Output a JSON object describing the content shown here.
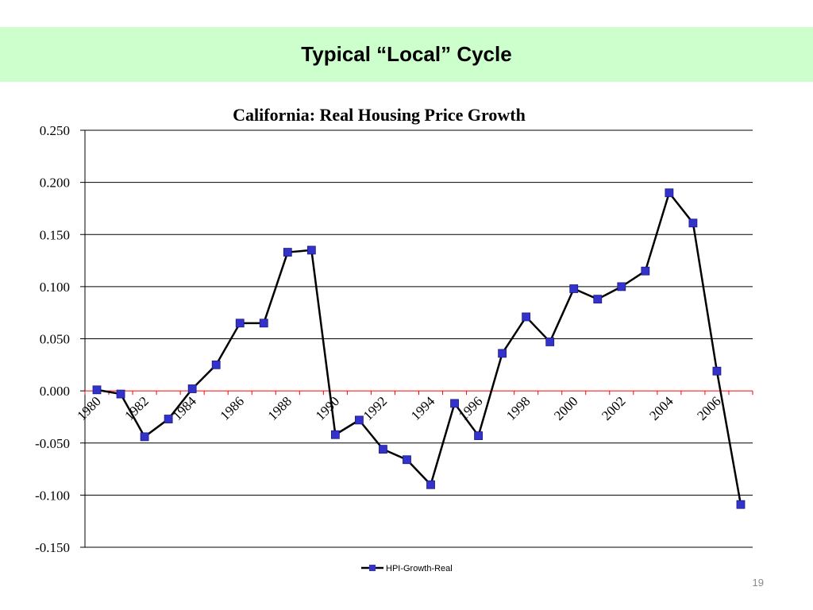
{
  "slide": {
    "title": "Typical “Local” Cycle",
    "page_number": "19",
    "title_band_color": "#ccffcc"
  },
  "chart_data": {
    "type": "line",
    "title": "California:   Real Housing Price Growth",
    "xlabel": "",
    "ylabel": "",
    "ylim": [
      -0.15,
      0.25
    ],
    "y_ticks": [
      "0.250",
      "0.200",
      "0.150",
      "0.100",
      "0.050",
      "0.000",
      "-0.050",
      "-0.100",
      "-0.150"
    ],
    "y_tick_values": [
      0.25,
      0.2,
      0.15,
      0.1,
      0.05,
      0.0,
      -0.05,
      -0.1,
      -0.15
    ],
    "x": [
      1980,
      1981,
      1982,
      1983,
      1984,
      1985,
      1986,
      1987,
      1988,
      1989,
      1990,
      1991,
      1992,
      1993,
      1994,
      1995,
      1996,
      1997,
      1998,
      1999,
      2000,
      2001,
      2002,
      2003,
      2004,
      2005,
      2006,
      2007
    ],
    "x_tick_labels": [
      "1980",
      "1982",
      "1984",
      "1986",
      "1988",
      "1990",
      "1992",
      "1994",
      "1996",
      "1998",
      "2000",
      "2002",
      "2004",
      "2006"
    ],
    "series": [
      {
        "name": "HPI-Growth-Real",
        "values": [
          0.001,
          -0.003,
          -0.044,
          -0.027,
          0.002,
          0.025,
          0.065,
          0.065,
          0.133,
          0.135,
          -0.042,
          -0.028,
          -0.056,
          -0.066,
          -0.09,
          -0.012,
          -0.043,
          0.036,
          0.071,
          0.047,
          0.098,
          0.088,
          0.1,
          0.115,
          0.19,
          0.161,
          0.019,
          -0.109
        ],
        "line_color": "#000000",
        "marker_color": "#3333cc"
      }
    ],
    "zero_line_color": "#ff0000",
    "grid": true,
    "legend": "bottom-center"
  }
}
